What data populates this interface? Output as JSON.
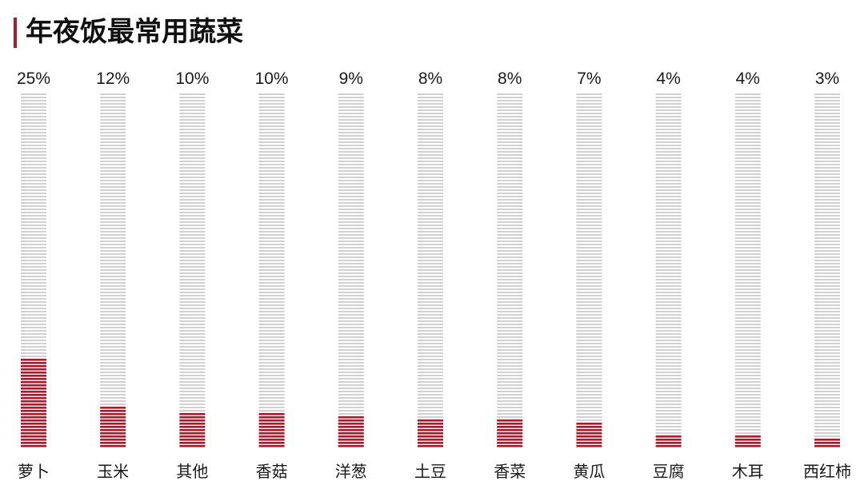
{
  "colors": {
    "accent": "#b0172a",
    "empty_stripe": "#d0d0d0",
    "filled_stripe": "#b0172a",
    "text": "#1a1a1a"
  },
  "chart_data": {
    "type": "bar",
    "title": "年夜饭最常用蔬菜",
    "xlabel": "",
    "ylabel": "",
    "ylim": [
      0,
      100
    ],
    "unit": "%",
    "grid": false,
    "legend": "none",
    "categories": [
      "萝卜",
      "玉米",
      "其他",
      "香菇",
      "洋葱",
      "土豆",
      "香菜",
      "黄瓜",
      "豆腐",
      "木耳",
      "西红柿"
    ],
    "values": [
      25,
      12,
      10,
      10,
      9,
      8,
      8,
      7,
      4,
      4,
      3
    ],
    "value_labels": [
      "25%",
      "12%",
      "10%",
      "10%",
      "9%",
      "8%",
      "8%",
      "7%",
      "4%",
      "4%",
      "3%"
    ]
  }
}
